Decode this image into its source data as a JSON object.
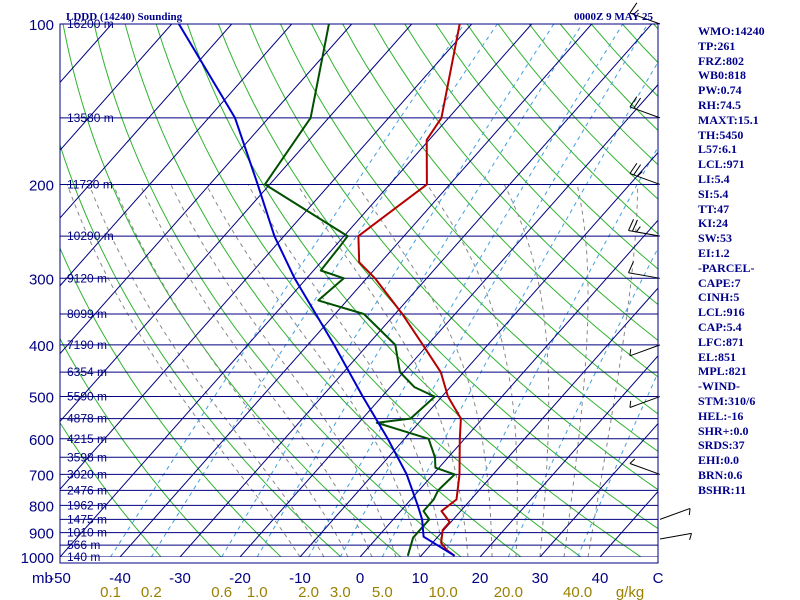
{
  "header": {
    "station": "LDDD (14240) Sounding",
    "time": "0000Z  9 MAY 25"
  },
  "chart_data": {
    "type": "skew-t",
    "pressure_axis": {
      "label": "mb",
      "range": [
        1000,
        100
      ],
      "scale": "log",
      "ticks": [
        "100",
        "200",
        "300",
        "400",
        "500",
        "600",
        "700",
        "800",
        "900",
        "1000"
      ]
    },
    "height_labels": [
      {
        "p": 100,
        "text": "16200 m"
      },
      {
        "p": 150,
        "text": "13580 m"
      },
      {
        "p": 200,
        "text": "11730 m"
      },
      {
        "p": 250,
        "text": "10290 m"
      },
      {
        "p": 300,
        "text": "9120 m"
      },
      {
        "p": 350,
        "text": "8099 m"
      },
      {
        "p": 400,
        "text": "7190 m"
      },
      {
        "p": 450,
        "text": "6354 m"
      },
      {
        "p": 500,
        "text": "5590 m"
      },
      {
        "p": 550,
        "text": "4878 m"
      },
      {
        "p": 600,
        "text": "4215 m"
      },
      {
        "p": 650,
        "text": "3598 m"
      },
      {
        "p": 700,
        "text": "3020 m"
      },
      {
        "p": 750,
        "text": "2476 m"
      },
      {
        "p": 800,
        "text": "1962 m"
      },
      {
        "p": 850,
        "text": "1475 m"
      },
      {
        "p": 900,
        "text": "1010 m"
      },
      {
        "p": 950,
        "text": "566 m"
      },
      {
        "p": 1000,
        "text": "140 m"
      }
    ],
    "temperature_axis": {
      "unit": "C",
      "range": [
        -50,
        50
      ],
      "ticks": [
        "-50",
        "-40",
        "-30",
        "-20",
        "-10",
        "0",
        "10",
        "20",
        "30",
        "40"
      ]
    },
    "mixing_ratio_axis": {
      "unit": "g/kg",
      "ticks": [
        "0.1",
        "0.2",
        "0.6",
        "1.0",
        "2.0",
        "3.0",
        "5.0",
        "10.0",
        "20.0",
        "40.0"
      ]
    },
    "series": [
      {
        "role": "temperature",
        "color": "#b40000",
        "points": [
          {
            "p": 995,
            "t": 15.6
          },
          {
            "p": 970,
            "t": 13.4
          },
          {
            "p": 940,
            "t": 11.4
          },
          {
            "p": 890,
            "t": 9.8
          },
          {
            "p": 860,
            "t": 9.8
          },
          {
            "p": 820,
            "t": 6.8
          },
          {
            "p": 780,
            "t": 7.6
          },
          {
            "p": 700,
            "t": 4.4
          },
          {
            "p": 600,
            "t": -0.8
          },
          {
            "p": 550,
            "t": -3.6
          },
          {
            "p": 500,
            "t": -9.0
          },
          {
            "p": 450,
            "t": -13.8
          },
          {
            "p": 400,
            "t": -20.8
          },
          {
            "p": 350,
            "t": -28.8
          },
          {
            "p": 300,
            "t": -38.6
          },
          {
            "p": 280,
            "t": -43.6
          },
          {
            "p": 250,
            "t": -47.6
          },
          {
            "p": 200,
            "t": -43.8
          },
          {
            "p": 165,
            "t": -50.4
          },
          {
            "p": 150,
            "t": -51.2
          },
          {
            "p": 100,
            "t": -62.0
          }
        ]
      },
      {
        "role": "dewpoint",
        "color": "#005000",
        "points": [
          {
            "p": 995,
            "t": 7.8
          },
          {
            "p": 920,
            "t": 6.0
          },
          {
            "p": 850,
            "t": 6.0
          },
          {
            "p": 820,
            "t": 3.8
          },
          {
            "p": 780,
            "t": 3.8
          },
          {
            "p": 750,
            "t": 3.2
          },
          {
            "p": 700,
            "t": 3.6
          },
          {
            "p": 680,
            "t": -0.6
          },
          {
            "p": 650,
            "t": -2.2
          },
          {
            "p": 600,
            "t": -6.0
          },
          {
            "p": 560,
            "t": -17.0
          },
          {
            "p": 550,
            "t": -12.0
          },
          {
            "p": 500,
            "t": -11.2
          },
          {
            "p": 480,
            "t": -16.0
          },
          {
            "p": 450,
            "t": -20.6
          },
          {
            "p": 400,
            "t": -25.4
          },
          {
            "p": 350,
            "t": -35.2
          },
          {
            "p": 330,
            "t": -44.8
          },
          {
            "p": 300,
            "t": -43.8
          },
          {
            "p": 290,
            "t": -48.8
          },
          {
            "p": 260,
            "t": -49.2
          },
          {
            "p": 250,
            "t": -49.4
          },
          {
            "p": 200,
            "t": -70.8
          },
          {
            "p": 150,
            "t": -73.0
          },
          {
            "p": 100,
            "t": -83.8
          }
        ]
      },
      {
        "role": "parcel",
        "color": "#0000cd",
        "points": [
          {
            "p": 995,
            "t": 15.6
          },
          {
            "p": 916,
            "t": 7.6
          },
          {
            "p": 850,
            "t": 4.8
          },
          {
            "p": 800,
            "t": 2.0
          },
          {
            "p": 700,
            "t": -4.4
          },
          {
            "p": 600,
            "t": -12.8
          },
          {
            "p": 500,
            "t": -23.2
          },
          {
            "p": 400,
            "t": -35.6
          },
          {
            "p": 300,
            "t": -52.0
          },
          {
            "p": 250,
            "t": -61.6
          },
          {
            "p": 200,
            "t": -72.0
          },
          {
            "p": 150,
            "t": -85.6
          },
          {
            "p": 100,
            "t": -108.8
          }
        ]
      }
    ],
    "wind_barbs": [
      {
        "p": 100,
        "dir": 290,
        "kt": 15
      },
      {
        "p": 150,
        "dir": 290,
        "kt": 20
      },
      {
        "p": 200,
        "dir": 290,
        "kt": 25
      },
      {
        "p": 250,
        "dir": 280,
        "kt": 25
      },
      {
        "p": 300,
        "dir": 280,
        "kt": 10
      },
      {
        "p": 400,
        "dir": 250,
        "kt": 5
      },
      {
        "p": 500,
        "dir": 250,
        "kt": 5
      },
      {
        "p": 700,
        "dir": 290,
        "kt": 5
      },
      {
        "p": 850,
        "dir": 70,
        "kt": 5
      },
      {
        "p": 925,
        "dir": 80,
        "kt": 5
      }
    ]
  },
  "indices": [
    "WMO:14240",
    "TP:261",
    "FRZ:802",
    "WB0:818",
    "PW:0.74",
    "RH:74.5",
    "MAXT:15.1",
    "TH:5450",
    "L57:6.1",
    "LCL:971",
    "LI:5.4",
    "SI:5.4",
    "TT:47",
    "KI:24",
    "SW:53",
    "EI:1.2",
    "-PARCEL-",
    "CAPE:7",
    "CINH:5",
    "LCL:916",
    "CAP:5.4",
    "LFC:871",
    "EL:851",
    "MPL:821",
    "-WIND-",
    "STM:310/6",
    "HEL:-16",
    "SHR+:0.0",
    "SRDS:37",
    "EHI:0.0",
    "BRN:0.6",
    "BSHR:11"
  ]
}
